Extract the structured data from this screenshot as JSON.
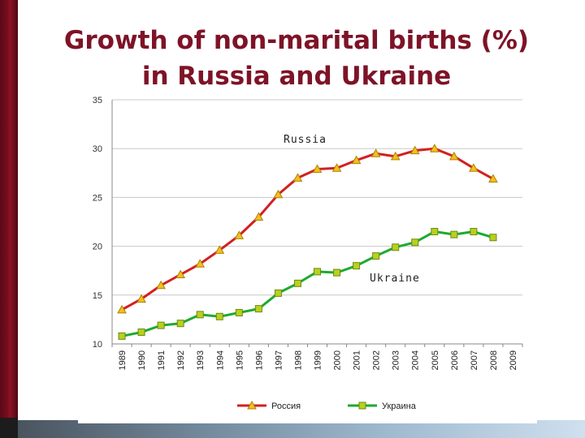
{
  "slide": {
    "title_line1": "Growth of non-marital births (%)",
    "title_line2": "in Russia and Ukraine"
  },
  "colors": {
    "russia_line": "#d32020",
    "russia_marker": "#f0c020",
    "ukraine_line": "#1eaa2e",
    "ukraine_marker": "#b8d020",
    "grid": "#c8c8c8",
    "title": "#7e1327"
  },
  "chart_data": {
    "type": "line",
    "title": "",
    "xlabel": "",
    "ylabel": "",
    "x": [
      "1989",
      "1990",
      "1991",
      "1992",
      "1993",
      "1994",
      "1995",
      "1996",
      "1997",
      "1998",
      "1999",
      "2000",
      "2001",
      "2002",
      "2003",
      "2004",
      "2005",
      "2006",
      "2007",
      "2008",
      "2009"
    ],
    "ylim": [
      10,
      35
    ],
    "yticks": [
      "10",
      "15",
      "20",
      "25",
      "30",
      "35"
    ],
    "grid": true,
    "legend_position": "bottom",
    "series": [
      {
        "name": "Россия",
        "annotation": "Russia",
        "values": [
          13.5,
          14.6,
          16.0,
          17.1,
          18.2,
          19.6,
          21.1,
          23.0,
          25.3,
          27.0,
          27.9,
          28.0,
          28.8,
          29.5,
          29.2,
          29.8,
          30.0,
          29.2,
          28.0,
          26.9,
          null
        ]
      },
      {
        "name": "Украина",
        "annotation": "Ukraine",
        "values": [
          10.8,
          11.2,
          11.9,
          12.1,
          13.0,
          12.8,
          13.2,
          13.6,
          15.2,
          16.2,
          17.4,
          17.3,
          18.0,
          19.0,
          19.9,
          20.4,
          21.5,
          21.2,
          21.5,
          20.9,
          null
        ]
      }
    ]
  }
}
